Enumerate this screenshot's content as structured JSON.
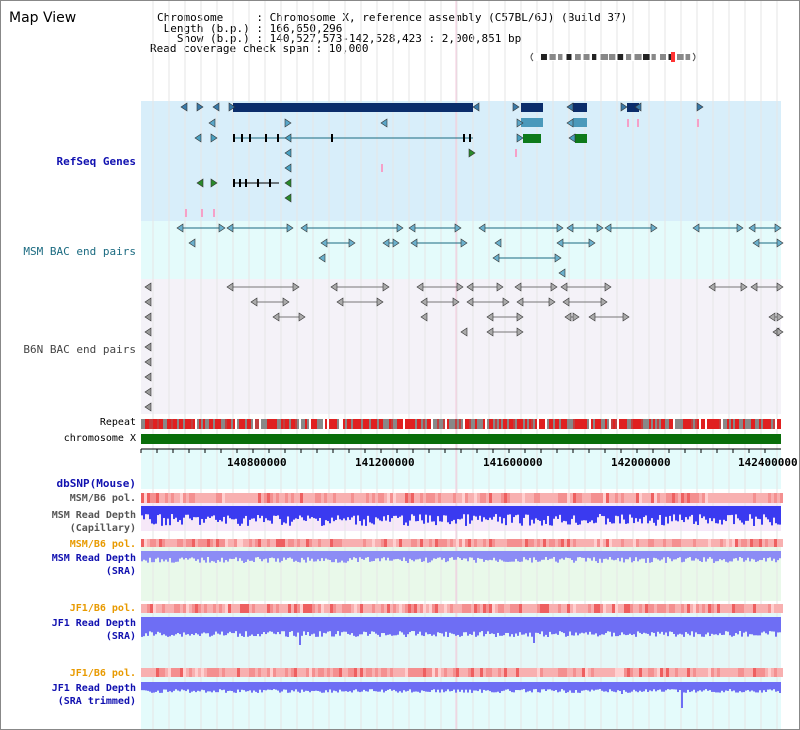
{
  "view_title": "Map View",
  "info_lines": [
    "Chromosome     : Chromosome X, reference assembly (C57BL/6J) (Build 37)",
    " Length (b.p.) : 166,650,296",
    "   Show (b.p.) : 140,527,573-142,528,423 : 2,000,851 bp",
    "Read coverage check span : 10,000"
  ],
  "tracks": {
    "refseq": "RefSeq Genes",
    "msm_bac": "MSM BAC end pairs",
    "b6n_bac": "B6N BAC end pairs",
    "repeat": "Repeat",
    "chromosome": "chromosome X",
    "dbsnp": "dbSNP(Mouse)",
    "msm_pol": "MSM/B6 pol.",
    "msm_depth_cap": "MSM Read Depth\n(Capillary)",
    "msm_pol2": "MSM/B6 pol.",
    "msm_depth_sra": "MSM Read Depth\n(SRA)",
    "jf1_pol": "JF1/B6 pol.",
    "jf1_depth_sra": "JF1 Read Depth\n(SRA)",
    "jf1_pol2": "JF1/B6 pol.",
    "jf1_depth_trim": "JF1 Read Depth\n(SRA trimmed)"
  },
  "axis_ticks": [
    "140800000",
    "141200000",
    "141600000",
    "142000000",
    "142400000"
  ],
  "colors": {
    "refseq_bg": "#d8eefa",
    "msm_bg": "#e4fbfb",
    "b6n_bg": "#f4f2f8",
    "gene_dark": "#0b2d6b",
    "gene_teal": "#4a99bb",
    "gene_green": "#0e7a1a",
    "chrom_green": "#0a6e0a",
    "label_blue": "#1010b0",
    "label_orange": "#e89a00",
    "depth_blue": "#3a3af0",
    "depth_light": "#8c8cf5"
  }
}
